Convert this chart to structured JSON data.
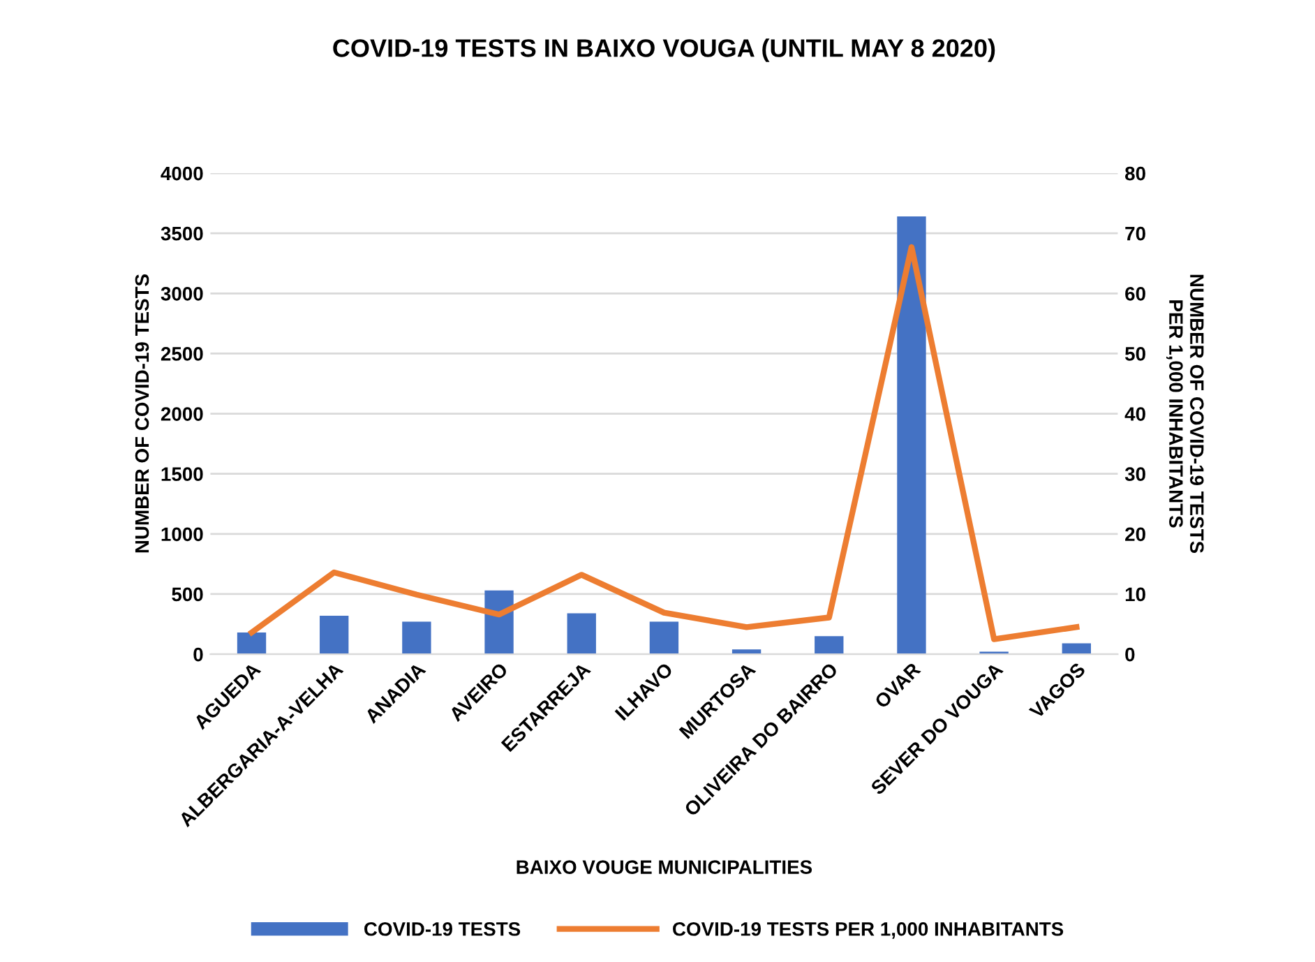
{
  "chart_data": {
    "type": "bar",
    "title": "COVID-19 TESTS IN BAIXO VOUGA (UNTIL MAY 8 2020)",
    "xlabel": "BAIXO VOUGE MUNICIPALITIES",
    "ylabel": "NUMBER OF COVID-19 TESTS",
    "y2label": "NUMBER OF COVID-19 TESTS\nPER 1,000 INHABITANTS",
    "categories": [
      "AGUEDA",
      "ALBERGARIA-A-VELHA",
      "ANADIA",
      "AVEIRO",
      "ESTARREJA",
      "ILHAVO",
      "MURTOSA",
      "OLIVEIRA DO BAIRRO",
      "OVAR",
      "SEVER DO VOUGA",
      "VAGOS"
    ],
    "series": [
      {
        "name": "COVID-19 TESTS",
        "color": "#4472c4",
        "values": [
          180,
          320,
          270,
          530,
          340,
          270,
          40,
          150,
          3640,
          20,
          90
        ]
      },
      {
        "name": "COVID-19 TESTS PER 1,000 INHABITANTS",
        "type": "line",
        "axis": "y2",
        "color": "#ed7d31",
        "values": [
          3.6,
          13.6,
          9.9,
          6.6,
          13.2,
          6.9,
          4.5,
          6.1,
          67.7,
          2.5,
          4.5
        ]
      }
    ],
    "ylim": [
      0,
      4000
    ],
    "yticks": [
      0,
      500,
      1000,
      1500,
      2000,
      2500,
      3000,
      3500,
      4000
    ],
    "y2lim": [
      0,
      80
    ],
    "y2ticks": [
      0,
      10,
      20,
      30,
      40,
      50,
      60,
      70,
      80
    ],
    "grid": "y",
    "legend": "bottom",
    "marker": "none",
    "line_style": "solid"
  }
}
